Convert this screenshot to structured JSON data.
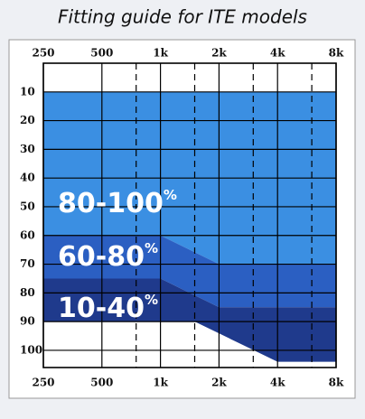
{
  "chart_data": {
    "type": "band",
    "title": "Fitting guide for ITE models",
    "xscale": "log",
    "xlim": [
      250,
      8000
    ],
    "xticks": [
      250,
      500,
      {
        "value": 1000,
        "label": "1k"
      },
      {
        "value": 2000,
        "label": "2k"
      },
      {
        "value": 4000,
        "label": "4k"
      },
      {
        "value": 8000,
        "label": "8k"
      }
    ],
    "xminorticks": [
      750,
      1500,
      3000,
      6000
    ],
    "ylim": [
      0,
      106
    ],
    "yreversed": true,
    "yticks": [
      10,
      20,
      30,
      40,
      50,
      60,
      70,
      80,
      90,
      100
    ],
    "grid": true,
    "fill_top": 10,
    "series": [
      {
        "name": "80-100%",
        "color": "#3b8fe2",
        "x": [
          250,
          1000,
          2000,
          8000
        ],
        "values": [
          60,
          60,
          70,
          70
        ]
      },
      {
        "name": "60-80%",
        "color": "#2b5fc2",
        "x": [
          250,
          1000,
          2000,
          8000
        ],
        "values": [
          75,
          75,
          85,
          85
        ]
      },
      {
        "name": "10-40%",
        "color": "#1f3a8c",
        "x": [
          250,
          1500,
          4000,
          8000
        ],
        "values": [
          90,
          90,
          104,
          104
        ]
      }
    ]
  }
}
